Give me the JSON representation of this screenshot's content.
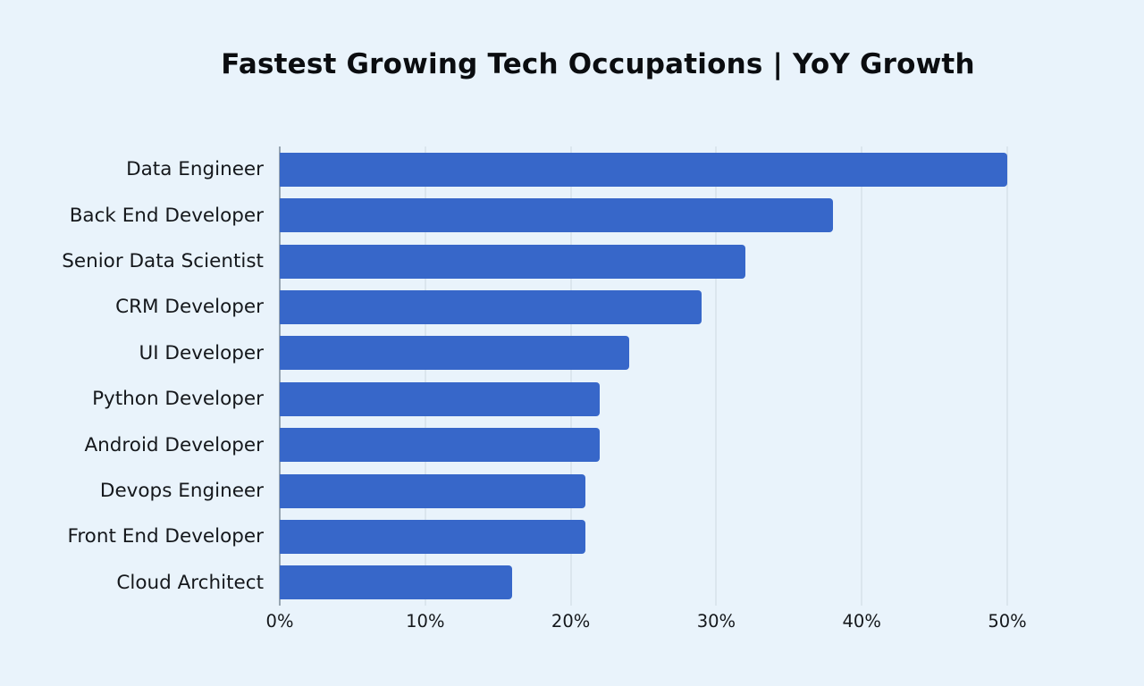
{
  "chart_data": {
    "type": "bar",
    "orientation": "horizontal",
    "title": "Fastest Growing Tech Occupations | YoY Growth",
    "categories": [
      "Data Engineer",
      "Back End Developer",
      "Senior Data Scientist",
      "CRM Developer",
      "UI Developer",
      "Python Developer",
      "Android Developer",
      "Devops Engineer",
      "Front End Developer",
      "Cloud Architect"
    ],
    "values": [
      50,
      38,
      32,
      29,
      24,
      22,
      22,
      21,
      21,
      16
    ],
    "value_unit": "%",
    "xlabel": "",
    "ylabel": "",
    "xlim": [
      0,
      50
    ],
    "x_tick_labels": [
      "0%",
      "10%",
      "20%",
      "30%",
      "40%",
      "50%"
    ],
    "grid": "vertical-only",
    "legend": "none",
    "colors": {
      "bar": "#3767c9",
      "background": "#e9f3fb",
      "gridline": "#cdd9e2",
      "axis_line": "#97a5b1",
      "text": "#15181c",
      "title_text": "#0b0d10"
    }
  }
}
